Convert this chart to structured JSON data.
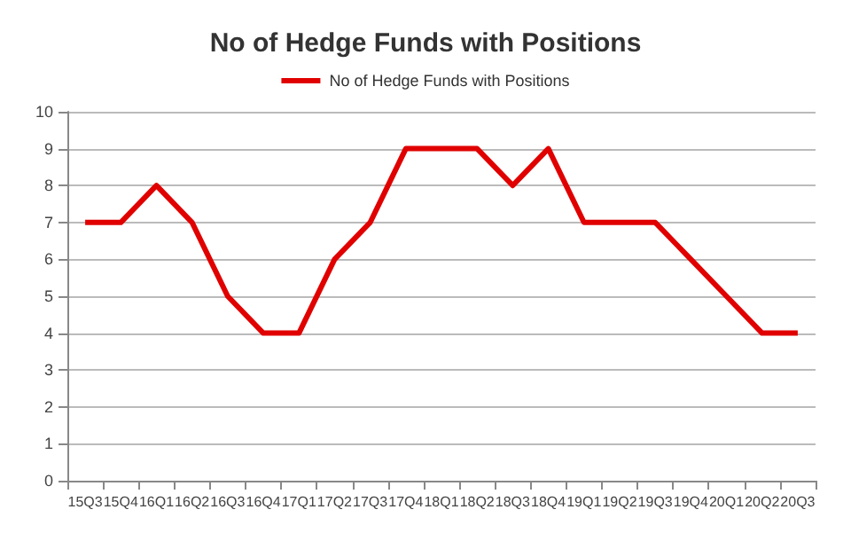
{
  "chart_data": {
    "type": "line",
    "title": "No of Hedge Funds with Positions",
    "categories": [
      "15Q3",
      "15Q4",
      "16Q1",
      "16Q2",
      "16Q3",
      "16Q4",
      "17Q1",
      "17Q2",
      "17Q3",
      "17Q4",
      "18Q1",
      "18Q2",
      "18Q3",
      "18Q4",
      "19Q1",
      "19Q2",
      "19Q3",
      "19Q4",
      "20Q1",
      "20Q2",
      "20Q3"
    ],
    "series": [
      {
        "name": "No of Hedge Funds with Positions",
        "color": "#e00000",
        "values": [
          7,
          7,
          8,
          7,
          5,
          4,
          4,
          6,
          7,
          9,
          9,
          9,
          8,
          9,
          7,
          7,
          7,
          6,
          5,
          4,
          4
        ]
      }
    ],
    "ylim": [
      0,
      10
    ],
    "yticks": [
      0,
      1,
      2,
      3,
      4,
      5,
      6,
      7,
      8,
      9,
      10
    ],
    "grid": "y",
    "legend": "top",
    "marker": "none",
    "line_style": "solid"
  }
}
